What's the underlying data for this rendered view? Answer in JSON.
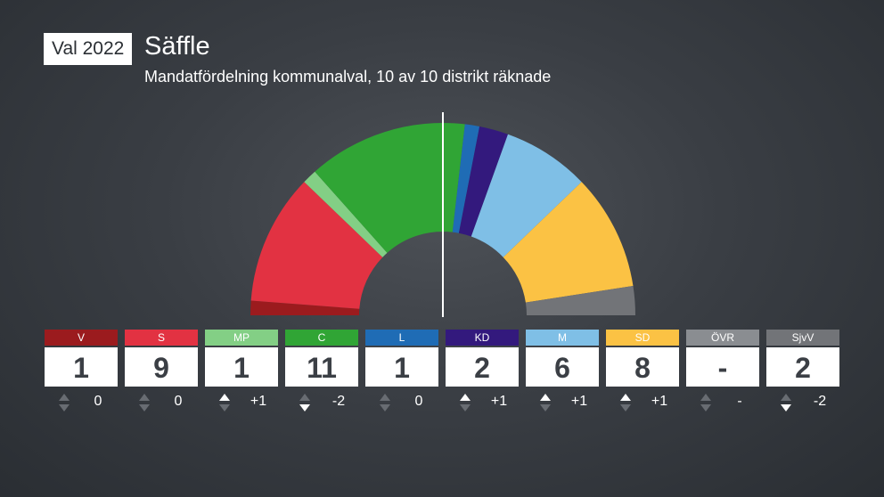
{
  "header": {
    "badge": "Val 2022",
    "title": "Säffle",
    "subtitle": "Mandatfördelning kommunalval, 10 av 10 distrikt räknade"
  },
  "chart_data": {
    "type": "parliament-semicircle",
    "title": "Säffle",
    "subtitle": "Mandatfördelning kommunalval, 10 av 10 distrikt räknade",
    "total_seats": 41,
    "majority_line": true,
    "parties": [
      {
        "code": "V",
        "seats": 1,
        "change": "0",
        "dir": "zero",
        "color": "#9b1b1e"
      },
      {
        "code": "S",
        "seats": 9,
        "change": "0",
        "dir": "zero",
        "color": "#e23242"
      },
      {
        "code": "MP",
        "seats": 1,
        "change": "+1",
        "dir": "pos",
        "color": "#83cf85"
      },
      {
        "code": "C",
        "seats": 11,
        "change": "-2",
        "dir": "neg",
        "color": "#30a535"
      },
      {
        "code": "L",
        "seats": 1,
        "change": "0",
        "dir": "zero",
        "color": "#1f6cb5"
      },
      {
        "code": "KD",
        "seats": 2,
        "change": "+1",
        "dir": "pos",
        "color": "#33197d"
      },
      {
        "code": "M",
        "seats": 6,
        "change": "+1",
        "dir": "pos",
        "color": "#7fbfe6"
      },
      {
        "code": "SD",
        "seats": 8,
        "change": "+1",
        "dir": "pos",
        "color": "#fbc244"
      },
      {
        "code": "ÖVR",
        "seats": "-",
        "change": "-",
        "dir": "zero",
        "color": "#8a8d91"
      },
      {
        "code": "SjvV",
        "seats": 2,
        "change": "-2",
        "dir": "neg",
        "color": "#727478"
      }
    ]
  }
}
